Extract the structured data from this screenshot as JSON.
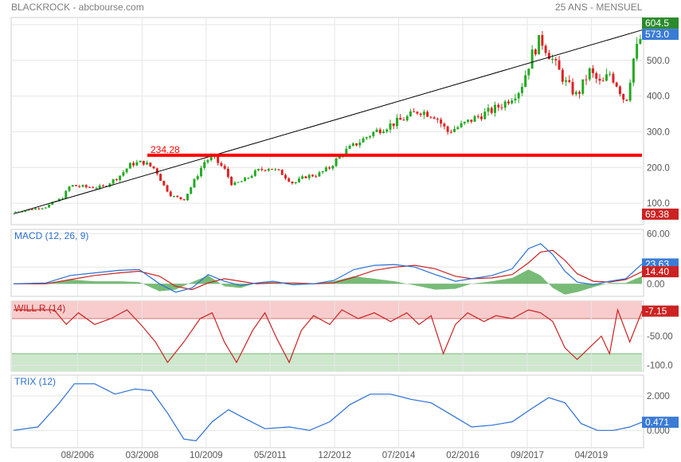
{
  "header": {
    "title": "BLACKROCK - abcbourse.com",
    "period": "25 ANS - MENSUEL"
  },
  "colors": {
    "up": "#22aa22",
    "down": "#dd2222",
    "trendline": "#000000",
    "support": "#ff0000",
    "macd_line": "#2a6fd6",
    "signal_line": "#cc2222",
    "histogram": "#55aa55",
    "will_r": "#cc2222",
    "trix": "#2a6fd6",
    "badge_green": "#2b8a2b",
    "badge_blue": "#3a7bd5",
    "badge_red": "#cc2222"
  },
  "chart_data": [
    {
      "type": "candlestick",
      "title": "BLACKROCK",
      "ylim": [
        40,
        620
      ],
      "yticks": [
        "100.0",
        "200.0",
        "300.0",
        "400.0",
        "500.0",
        "600.0"
      ],
      "ytick_values": [
        100,
        200,
        300,
        400,
        500,
        600
      ],
      "xticks": [
        "08/2006",
        "03/2008",
        "10/2009",
        "05/2011",
        "12/2012",
        "07/2014",
        "02/2016",
        "09/2017",
        "04/2019"
      ],
      "xtick_years": [
        2006.58,
        2008.17,
        2009.75,
        2011.33,
        2012.92,
        2014.5,
        2016.08,
        2017.67,
        2019.25
      ],
      "x_start_year": 2005.0,
      "x_end_year": 2020.5,
      "close_path": [
        [
          2005.0,
          75
        ],
        [
          2005.8,
          90
        ],
        [
          2006.2,
          115
        ],
        [
          2006.4,
          150
        ],
        [
          2006.8,
          145
        ],
        [
          2007.2,
          145
        ],
        [
          2007.6,
          175
        ],
        [
          2007.9,
          210
        ],
        [
          2008.2,
          215
        ],
        [
          2008.5,
          195
        ],
        [
          2008.7,
          150
        ],
        [
          2008.9,
          120
        ],
        [
          2009.2,
          110
        ],
        [
          2009.4,
          150
        ],
        [
          2009.7,
          215
        ],
        [
          2009.9,
          230
        ],
        [
          2010.2,
          195
        ],
        [
          2010.4,
          150
        ],
        [
          2010.7,
          165
        ],
        [
          2011.0,
          190
        ],
        [
          2011.3,
          200
        ],
        [
          2011.6,
          185
        ],
        [
          2011.9,
          155
        ],
        [
          2012.2,
          175
        ],
        [
          2012.5,
          180
        ],
        [
          2012.8,
          200
        ],
        [
          2013.1,
          240
        ],
        [
          2013.5,
          270
        ],
        [
          2013.9,
          300
        ],
        [
          2014.3,
          320
        ],
        [
          2014.7,
          340
        ],
        [
          2015.0,
          360
        ],
        [
          2015.4,
          345
        ],
        [
          2015.7,
          300
        ],
        [
          2016.0,
          315
        ],
        [
          2016.4,
          340
        ],
        [
          2016.8,
          360
        ],
        [
          2017.1,
          380
        ],
        [
          2017.5,
          420
        ],
        [
          2017.8,
          520
        ],
        [
          2018.0,
          560
        ],
        [
          2018.3,
          500
        ],
        [
          2018.6,
          440
        ],
        [
          2018.9,
          400
        ],
        [
          2019.2,
          470
        ],
        [
          2019.5,
          430
        ],
        [
          2019.7,
          465
        ],
        [
          2019.9,
          430
        ],
        [
          2020.1,
          380
        ],
        [
          2020.3,
          510
        ],
        [
          2020.5,
          573
        ]
      ],
      "trendline": {
        "from": [
          2005.0,
          70
        ],
        "to": [
          2020.5,
          585
        ]
      },
      "support_level": {
        "value": 234.28,
        "label": "234.28",
        "from_year": 2008.3
      },
      "badges": [
        {
          "label": "604.5",
          "value": 604.5,
          "color": "badge_green"
        },
        {
          "label": "573.0",
          "value": 573.0,
          "color": "badge_blue"
        },
        {
          "label": "69.38",
          "value": 69.38,
          "color": "badge_red"
        }
      ]
    },
    {
      "type": "line",
      "title": "MACD (12, 26, 9)",
      "ylim": [
        -15,
        65
      ],
      "yticks": [
        "60.00",
        "20.00",
        "0.00"
      ],
      "ytick_values": [
        60,
        20,
        0
      ],
      "series": [
        {
          "name": "MACD",
          "color": "macd_line",
          "points": [
            [
              2005.0,
              0
            ],
            [
              2005.8,
              1
            ],
            [
              2006.4,
              10
            ],
            [
              2007.0,
              13
            ],
            [
              2007.6,
              16
            ],
            [
              2008.1,
              17
            ],
            [
              2008.6,
              0
            ],
            [
              2009.0,
              -10
            ],
            [
              2009.4,
              -5
            ],
            [
              2009.8,
              11
            ],
            [
              2010.2,
              3
            ],
            [
              2010.6,
              -2
            ],
            [
              2011.0,
              1
            ],
            [
              2011.4,
              3
            ],
            [
              2011.9,
              -1
            ],
            [
              2012.4,
              0
            ],
            [
              2012.9,
              4
            ],
            [
              2013.4,
              17
            ],
            [
              2013.9,
              22
            ],
            [
              2014.4,
              23
            ],
            [
              2014.9,
              20
            ],
            [
              2015.4,
              11
            ],
            [
              2015.9,
              3
            ],
            [
              2016.3,
              6
            ],
            [
              2016.8,
              10
            ],
            [
              2017.3,
              18
            ],
            [
              2017.7,
              42
            ],
            [
              2018.0,
              48
            ],
            [
              2018.3,
              35
            ],
            [
              2018.6,
              15
            ],
            [
              2018.9,
              2
            ],
            [
              2019.3,
              -1
            ],
            [
              2019.7,
              3
            ],
            [
              2020.1,
              6
            ],
            [
              2020.5,
              23.63
            ]
          ]
        },
        {
          "name": "Signal",
          "color": "signal_line",
          "points": [
            [
              2005.0,
              0
            ],
            [
              2005.8,
              0
            ],
            [
              2006.4,
              5
            ],
            [
              2007.0,
              10
            ],
            [
              2007.6,
              13
            ],
            [
              2008.1,
              15
            ],
            [
              2008.6,
              9
            ],
            [
              2009.0,
              -3
            ],
            [
              2009.4,
              -7
            ],
            [
              2009.8,
              1
            ],
            [
              2010.2,
              6
            ],
            [
              2010.6,
              3
            ],
            [
              2011.0,
              0
            ],
            [
              2011.4,
              1
            ],
            [
              2011.9,
              1
            ],
            [
              2012.4,
              0
            ],
            [
              2012.9,
              1
            ],
            [
              2013.4,
              8
            ],
            [
              2013.9,
              16
            ],
            [
              2014.4,
              20
            ],
            [
              2014.9,
              22
            ],
            [
              2015.4,
              18
            ],
            [
              2015.9,
              9
            ],
            [
              2016.3,
              6
            ],
            [
              2016.8,
              7
            ],
            [
              2017.3,
              11
            ],
            [
              2017.7,
              25
            ],
            [
              2018.0,
              38
            ],
            [
              2018.3,
              40
            ],
            [
              2018.6,
              28
            ],
            [
              2018.9,
              12
            ],
            [
              2019.3,
              3
            ],
            [
              2019.7,
              2
            ],
            [
              2020.1,
              5
            ],
            [
              2020.5,
              14.4
            ]
          ]
        }
      ],
      "badges": [
        {
          "label": "23.63",
          "value": 23.63,
          "color": "badge_blue"
        },
        {
          "label": "14.40",
          "value": 14.4,
          "color": "badge_red"
        }
      ]
    },
    {
      "type": "line",
      "title": "WILL R (14)",
      "ylim": [
        -110,
        10
      ],
      "yticks": [
        "-50.00",
        "-100.0"
      ],
      "ytick_values": [
        -50,
        -100
      ],
      "bands": {
        "overbought": -20,
        "oversold": -80
      },
      "series": [
        {
          "name": "WILL R",
          "color": "will_r",
          "points": [
            [
              2005.0,
              -5
            ],
            [
              2006.0,
              -5
            ],
            [
              2006.3,
              -30
            ],
            [
              2006.6,
              -10
            ],
            [
              2007.0,
              -30
            ],
            [
              2007.4,
              -20
            ],
            [
              2007.8,
              -5
            ],
            [
              2008.2,
              -35
            ],
            [
              2008.5,
              -60
            ],
            [
              2008.8,
              -95
            ],
            [
              2009.2,
              -60
            ],
            [
              2009.6,
              -20
            ],
            [
              2009.9,
              -10
            ],
            [
              2010.2,
              -60
            ],
            [
              2010.5,
              -95
            ],
            [
              2010.9,
              -40
            ],
            [
              2011.2,
              -10
            ],
            [
              2011.5,
              -55
            ],
            [
              2011.8,
              -95
            ],
            [
              2012.1,
              -40
            ],
            [
              2012.4,
              -15
            ],
            [
              2012.8,
              -30
            ],
            [
              2013.1,
              -5
            ],
            [
              2013.5,
              -20
            ],
            [
              2013.9,
              -10
            ],
            [
              2014.3,
              -25
            ],
            [
              2014.7,
              -10
            ],
            [
              2015.0,
              -30
            ],
            [
              2015.3,
              -15
            ],
            [
              2015.6,
              -80
            ],
            [
              2015.9,
              -30
            ],
            [
              2016.2,
              -10
            ],
            [
              2016.6,
              -25
            ],
            [
              2016.9,
              -15
            ],
            [
              2017.3,
              -20
            ],
            [
              2017.7,
              -5
            ],
            [
              2018.0,
              -10
            ],
            [
              2018.3,
              -25
            ],
            [
              2018.6,
              -70
            ],
            [
              2018.9,
              -90
            ],
            [
              2019.2,
              -70
            ],
            [
              2019.5,
              -50
            ],
            [
              2019.7,
              -80
            ],
            [
              2019.9,
              -5
            ],
            [
              2020.2,
              -60
            ],
            [
              2020.5,
              -7.15
            ]
          ]
        }
      ],
      "badges": [
        {
          "label": "-7.15",
          "value": -7.15,
          "color": "badge_red"
        }
      ]
    },
    {
      "type": "line",
      "title": "TRIX (12)",
      "ylim": [
        -1.0,
        3.2
      ],
      "yticks": [
        "2.000",
        "0.000"
      ],
      "ytick_values": [
        2,
        0
      ],
      "series": [
        {
          "name": "TRIX",
          "color": "trix",
          "points": [
            [
              2005.0,
              0
            ],
            [
              2005.6,
              0.2
            ],
            [
              2006.1,
              1.5
            ],
            [
              2006.5,
              2.7
            ],
            [
              2007.0,
              2.7
            ],
            [
              2007.5,
              2.1
            ],
            [
              2008.0,
              2.4
            ],
            [
              2008.4,
              2.3
            ],
            [
              2008.8,
              1.0
            ],
            [
              2009.2,
              -0.5
            ],
            [
              2009.5,
              -0.6
            ],
            [
              2009.9,
              0.5
            ],
            [
              2010.3,
              1.2
            ],
            [
              2010.7,
              0.7
            ],
            [
              2011.2,
              0.1
            ],
            [
              2011.8,
              0.2
            ],
            [
              2012.3,
              0.0
            ],
            [
              2012.8,
              0.5
            ],
            [
              2013.3,
              1.5
            ],
            [
              2013.8,
              2.1
            ],
            [
              2014.3,
              2.1
            ],
            [
              2014.8,
              1.8
            ],
            [
              2015.3,
              1.6
            ],
            [
              2015.8,
              0.9
            ],
            [
              2016.3,
              0.2
            ],
            [
              2016.8,
              0.3
            ],
            [
              2017.3,
              0.5
            ],
            [
              2017.8,
              1.3
            ],
            [
              2018.2,
              1.9
            ],
            [
              2018.6,
              1.6
            ],
            [
              2019.0,
              0.4
            ],
            [
              2019.4,
              0.0
            ],
            [
              2019.8,
              0.0
            ],
            [
              2020.2,
              0.2
            ],
            [
              2020.5,
              0.471
            ]
          ]
        }
      ],
      "badges": [
        {
          "label": "0.471",
          "value": 0.471,
          "color": "badge_blue"
        }
      ]
    }
  ]
}
